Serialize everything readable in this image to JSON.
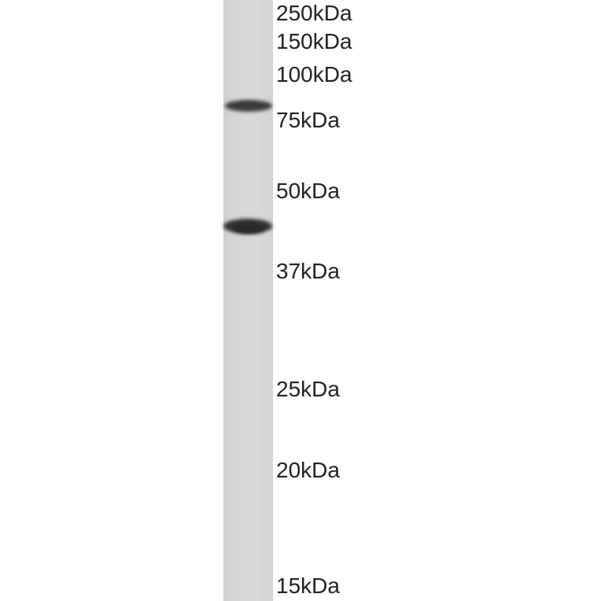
{
  "markers": [
    "250kDa",
    "150kDa",
    "100kDa",
    "75kDa",
    "50kDa",
    "37kDa",
    "25kDa",
    "20kDa",
    "15kDa"
  ],
  "bands": [
    {
      "near_marker": "75kDa",
      "intensity": "strong"
    },
    {
      "near_marker": "50kDa",
      "intensity": "strong"
    }
  ]
}
